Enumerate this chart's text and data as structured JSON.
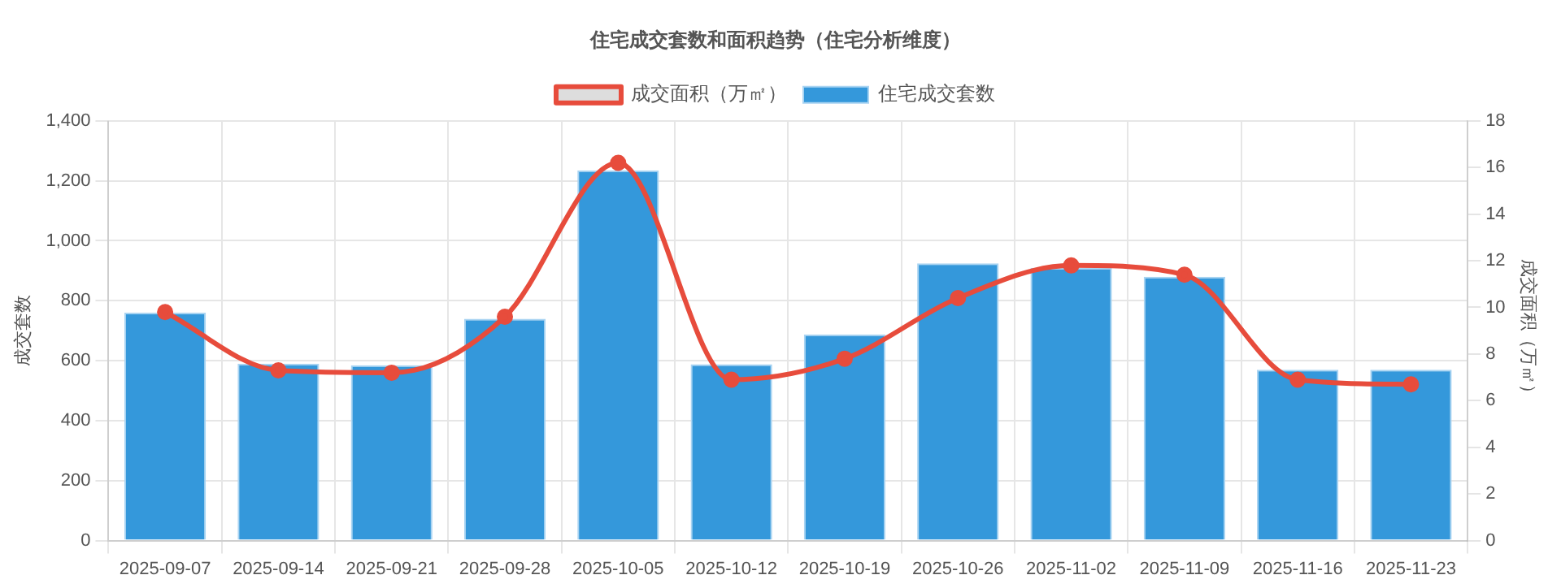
{
  "chart_data": {
    "type": "bar",
    "title": "住宅成交套数和面积趋势（住宅分析维度）",
    "categories": [
      "2025-09-07",
      "2025-09-14",
      "2025-09-21",
      "2025-09-28",
      "2025-10-05",
      "2025-10-12",
      "2025-10-19",
      "2025-10-26",
      "2025-11-02",
      "2025-11-09",
      "2025-11-16",
      "2025-11-23"
    ],
    "series": [
      {
        "name": "成交面积（万㎡）",
        "type": "line",
        "axis": "y2",
        "color": "#e74c3c",
        "values": [
          9.8,
          7.3,
          7.2,
          9.6,
          16.2,
          6.9,
          7.8,
          10.4,
          11.8,
          11.4,
          6.9,
          6.7
        ]
      },
      {
        "name": "住宅成交套数",
        "color": "#3498db",
        "values": [
          760,
          590,
          585,
          740,
          1235,
          588,
          688,
          925,
          910,
          880,
          570,
          570
        ]
      }
    ],
    "ylabel": "成交套数",
    "y2label": "成交面积（万㎡）",
    "ylim": [
      0,
      1400
    ],
    "yticks": [
      0,
      200,
      400,
      600,
      800,
      {
        "value": 1000,
        "label": "1,000"
      },
      {
        "value": 1200,
        "label": "1,200"
      },
      {
        "value": 1400,
        "label": "1,400"
      }
    ],
    "y2lim": [
      0,
      18
    ],
    "y2ticks": [
      0,
      2,
      4,
      6,
      8,
      10,
      12,
      14,
      16,
      18
    ],
    "grid": true,
    "legend": "top",
    "marker": "circle"
  }
}
